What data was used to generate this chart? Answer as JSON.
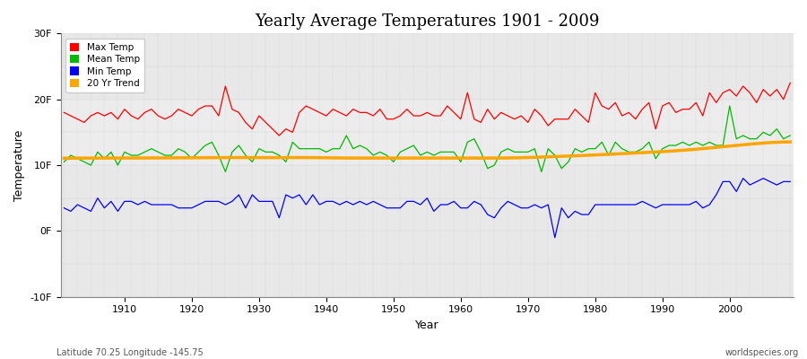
{
  "title": "Yearly Average Temperatures 1901 - 2009",
  "xlabel": "Year",
  "ylabel": "Temperature",
  "subtitle_left": "Latitude 70.25 Longitude -145.75",
  "subtitle_right": "worldspecies.org",
  "years": [
    1901,
    1902,
    1903,
    1904,
    1905,
    1906,
    1907,
    1908,
    1909,
    1910,
    1911,
    1912,
    1913,
    1914,
    1915,
    1916,
    1917,
    1918,
    1919,
    1920,
    1921,
    1922,
    1923,
    1924,
    1925,
    1926,
    1927,
    1928,
    1929,
    1930,
    1931,
    1932,
    1933,
    1934,
    1935,
    1936,
    1937,
    1938,
    1939,
    1940,
    1941,
    1942,
    1943,
    1944,
    1945,
    1946,
    1947,
    1948,
    1949,
    1950,
    1951,
    1952,
    1953,
    1954,
    1955,
    1956,
    1957,
    1958,
    1959,
    1960,
    1961,
    1962,
    1963,
    1964,
    1965,
    1966,
    1967,
    1968,
    1969,
    1970,
    1971,
    1972,
    1973,
    1974,
    1975,
    1976,
    1977,
    1978,
    1979,
    1980,
    1981,
    1982,
    1983,
    1984,
    1985,
    1986,
    1987,
    1988,
    1989,
    1990,
    1991,
    1992,
    1993,
    1994,
    1995,
    1996,
    1997,
    1998,
    1999,
    2000,
    2001,
    2002,
    2003,
    2004,
    2005,
    2006,
    2007,
    2008,
    2009
  ],
  "max_temp": [
    18.0,
    17.5,
    17.0,
    16.5,
    17.5,
    18.0,
    17.5,
    18.0,
    17.0,
    18.5,
    17.5,
    17.0,
    18.0,
    18.5,
    17.5,
    17.0,
    17.5,
    18.5,
    18.0,
    17.5,
    18.5,
    19.0,
    19.0,
    17.5,
    22.0,
    18.5,
    18.0,
    16.5,
    15.5,
    17.5,
    16.5,
    15.5,
    14.5,
    15.5,
    15.0,
    18.0,
    19.0,
    18.5,
    18.0,
    17.5,
    18.5,
    18.0,
    17.5,
    18.5,
    18.0,
    18.0,
    17.5,
    18.5,
    17.0,
    17.0,
    17.5,
    18.5,
    17.5,
    17.5,
    18.0,
    17.5,
    17.5,
    19.0,
    18.0,
    17.0,
    21.0,
    17.0,
    16.5,
    18.5,
    17.0,
    18.0,
    17.5,
    17.0,
    17.5,
    16.5,
    18.5,
    17.5,
    16.0,
    17.0,
    17.0,
    17.0,
    18.5,
    17.5,
    16.5,
    21.0,
    19.0,
    18.5,
    19.5,
    17.5,
    18.0,
    17.0,
    18.5,
    19.5,
    15.5,
    19.0,
    19.5,
    18.0,
    18.5,
    18.5,
    19.5,
    17.5,
    21.0,
    19.5,
    21.0,
    21.5,
    20.5,
    22.0,
    21.0,
    19.5,
    21.5,
    20.5,
    21.5,
    20.0,
    22.5
  ],
  "mean_temp": [
    10.5,
    11.5,
    11.0,
    10.5,
    10.0,
    12.0,
    11.0,
    12.0,
    10.0,
    12.0,
    11.5,
    11.5,
    12.0,
    12.5,
    12.0,
    11.5,
    11.5,
    12.5,
    12.0,
    11.0,
    12.0,
    13.0,
    13.5,
    11.5,
    9.0,
    12.0,
    13.0,
    11.5,
    10.5,
    12.5,
    12.0,
    12.0,
    11.5,
    10.5,
    13.5,
    12.5,
    12.5,
    12.5,
    12.5,
    12.0,
    12.5,
    12.5,
    14.5,
    12.5,
    13.0,
    12.5,
    11.5,
    12.0,
    11.5,
    10.5,
    12.0,
    12.5,
    13.0,
    11.5,
    12.0,
    11.5,
    12.0,
    12.0,
    12.0,
    10.5,
    13.5,
    14.0,
    12.0,
    9.5,
    10.0,
    12.0,
    12.5,
    12.0,
    12.0,
    12.0,
    12.5,
    9.0,
    12.5,
    11.5,
    9.5,
    10.5,
    12.5,
    12.0,
    12.5,
    12.5,
    13.5,
    11.5,
    13.5,
    12.5,
    12.0,
    12.0,
    12.5,
    13.5,
    11.0,
    12.5,
    13.0,
    13.0,
    13.5,
    13.0,
    13.5,
    13.0,
    13.5,
    13.0,
    13.0,
    19.0,
    14.0,
    14.5,
    14.0,
    14.0,
    15.0,
    14.5,
    15.5,
    14.0,
    14.5
  ],
  "min_temp": [
    3.5,
    3.0,
    4.0,
    3.5,
    3.0,
    5.0,
    3.5,
    4.5,
    3.0,
    4.5,
    4.5,
    4.0,
    4.5,
    4.0,
    4.0,
    4.0,
    4.0,
    3.5,
    3.5,
    3.5,
    4.0,
    4.5,
    4.5,
    4.5,
    4.0,
    4.5,
    5.5,
    3.5,
    5.5,
    4.5,
    4.5,
    4.5,
    2.0,
    5.5,
    5.0,
    5.5,
    4.0,
    5.5,
    4.0,
    4.5,
    4.5,
    4.0,
    4.5,
    4.0,
    4.5,
    4.0,
    4.5,
    4.0,
    3.5,
    3.5,
    3.5,
    4.5,
    4.5,
    4.0,
    5.0,
    3.0,
    4.0,
    4.0,
    4.5,
    3.5,
    3.5,
    4.5,
    4.0,
    2.5,
    2.0,
    3.5,
    4.5,
    4.0,
    3.5,
    3.5,
    4.0,
    3.5,
    4.0,
    -1.0,
    3.5,
    2.0,
    3.0,
    2.5,
    2.5,
    4.0,
    4.0,
    4.0,
    4.0,
    4.0,
    4.0,
    4.0,
    4.5,
    4.0,
    3.5,
    4.0,
    4.0,
    4.0,
    4.0,
    4.0,
    4.5,
    3.5,
    4.0,
    5.5,
    7.5,
    7.5,
    6.0,
    8.0,
    7.0,
    7.5,
    8.0,
    7.5,
    7.0,
    7.5,
    7.5
  ],
  "trend_y": [
    11.0,
    11.05,
    11.1,
    11.12,
    11.1,
    11.08,
    11.05,
    11.05,
    11.07,
    11.1,
    11.12,
    11.1,
    11.08,
    11.06,
    11.08,
    11.1,
    11.12,
    11.15,
    11.15,
    11.12,
    11.1,
    11.1,
    11.12,
    11.15,
    11.18,
    11.2,
    11.2,
    11.18,
    11.15,
    11.12,
    11.1,
    11.1,
    11.12,
    11.15,
    11.18,
    11.2,
    11.2,
    11.18,
    11.15,
    11.12,
    11.1,
    11.08,
    11.06,
    11.05,
    11.05,
    11.07,
    11.1,
    11.12,
    11.1,
    11.08,
    11.06,
    11.05,
    11.07,
    11.1,
    11.12,
    11.1,
    11.08,
    11.06,
    11.05,
    11.05,
    11.07,
    11.1,
    11.12,
    11.1,
    11.08,
    11.06,
    11.05,
    11.05,
    11.07,
    11.1,
    11.2,
    11.25,
    11.3,
    11.35,
    11.35,
    11.35,
    11.4,
    11.45,
    11.5,
    11.55,
    11.6,
    11.65,
    11.7,
    11.75,
    11.8,
    11.85,
    11.9,
    11.95,
    12.0,
    12.05,
    12.1,
    12.15,
    12.2,
    12.3,
    12.4,
    12.5,
    12.6,
    12.7,
    12.8,
    12.9,
    13.0,
    13.1,
    13.2,
    13.3,
    13.4,
    13.5,
    13.55,
    13.6,
    13.65
  ],
  "ylim": [
    -10,
    30
  ],
  "yticks": [
    -10,
    0,
    10,
    20,
    30
  ],
  "ytick_labels": [
    "-10F",
    "0F",
    "10F",
    "20F",
    "30F"
  ],
  "fig_facecolor": "#ffffff",
  "plot_facecolor": "#e8e8e8",
  "band_color": "#d8d8d8",
  "max_color": "#ff0000",
  "mean_color": "#00bb00",
  "min_color": "#0000ff",
  "trend_color": "#ffa500",
  "grid_color": "#bbbbbb",
  "legend_labels": [
    "Max Temp",
    "Mean Temp",
    "Min Temp",
    "20 Yr Trend"
  ]
}
